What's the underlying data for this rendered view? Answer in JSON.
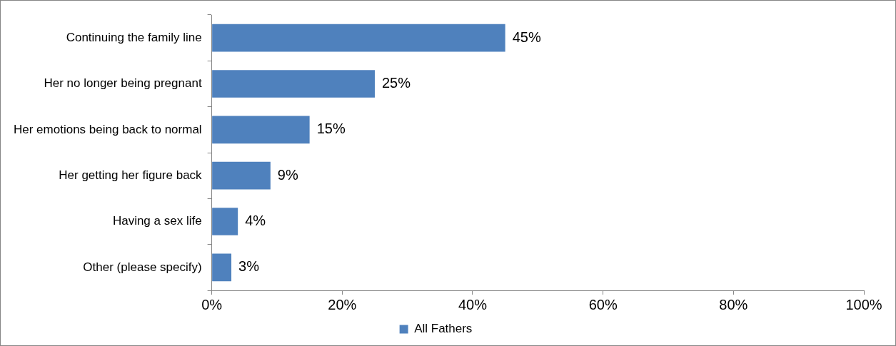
{
  "chart_data": {
    "type": "bar",
    "orientation": "horizontal",
    "categories": [
      "Continuing the family line",
      "Her no longer being pregnant",
      "Her emotions being back to normal",
      "Her getting her figure back",
      "Having a sex life",
      "Other (please specify)"
    ],
    "series": [
      {
        "name": "All Fathers",
        "color": "#4f81bd",
        "values": [
          45,
          25,
          15,
          9,
          4,
          3
        ],
        "value_labels": [
          "45%",
          "25%",
          "15%",
          "9%",
          "4%",
          "3%"
        ]
      }
    ],
    "xlim": [
      0,
      100
    ],
    "xticks": [
      {
        "value": 0,
        "label": "0%"
      },
      {
        "value": 20,
        "label": "20%"
      },
      {
        "value": 40,
        "label": "40%"
      },
      {
        "value": 60,
        "label": "60%"
      },
      {
        "value": 80,
        "label": "80%"
      },
      {
        "value": 100,
        "label": "100%"
      }
    ],
    "grid": false,
    "legend": "bottom"
  }
}
